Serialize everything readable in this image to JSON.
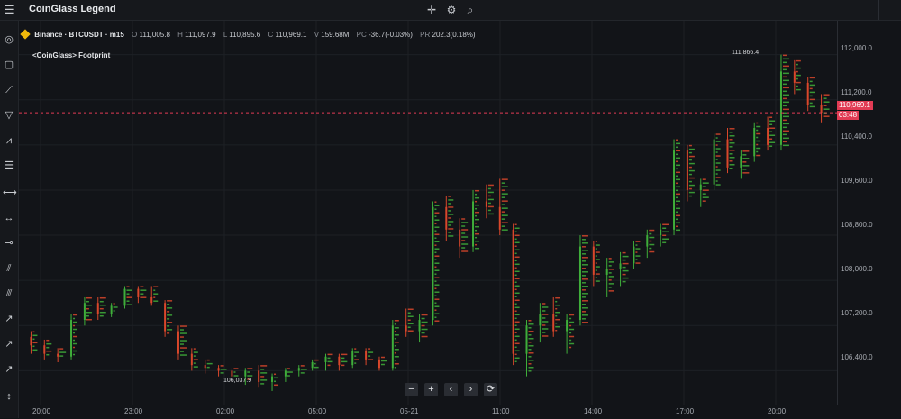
{
  "app": {
    "title": "CoinGlass Legend"
  },
  "icons": {
    "menu": "menu-icon",
    "crosshair": "crosshair-icon",
    "settings": "gear-icon",
    "search": "search-icon"
  },
  "toolbar": {
    "tools": [
      "cursor-icon",
      "rectangle-icon",
      "trendline-icon",
      "triangle-icon",
      "path-icon",
      "fib-icon",
      "horizontal-ray-icon",
      "horizontal-line-icon",
      "extended-line-icon",
      "parallel-channel-icon",
      "pitchfork-icon",
      "ray-icon",
      "arrow-icon",
      "info-line-icon",
      "vertical-line-icon"
    ]
  },
  "legend": {
    "symbol": "Binance · BTCUSDT · m15",
    "o_label": "O",
    "o_value": "111,005.8",
    "h_label": "H",
    "h_value": "111,097.9",
    "l_label": "L",
    "l_value": "110,895.6",
    "c_label": "C",
    "c_value": "110,969.1",
    "v_label": "V",
    "v_value": "159.68M",
    "pc_label": "PC",
    "pc_value": "-36.7(-0.03%)",
    "pr_label": "PR",
    "pr_value": "202.3(0.18%)"
  },
  "indicator": {
    "name": "<CoinGlass> Footprint"
  },
  "price_axis": {
    "labels": [
      "112,000.0",
      "111,200.0",
      "110,400.0",
      "109,600.0",
      "108,800.0",
      "108,000.0",
      "107,200.0",
      "106,400.0"
    ]
  },
  "current": {
    "price": "110,969.1",
    "countdown": "03:48"
  },
  "time_axis": {
    "labels": [
      "20:00",
      "23:00",
      "02:00",
      "05:00",
      "05-21",
      "11:00",
      "14:00",
      "17:00",
      "20:00"
    ]
  },
  "annotations": {
    "high": "111,866.4",
    "low": "106,037.9"
  },
  "zoom": {
    "out": "−",
    "in": "+",
    "left": "‹",
    "right": "›",
    "reset": "⟳"
  },
  "colors": {
    "up": "#3fae3a",
    "down": "#d9472b",
    "current": "#e23b54",
    "background": "#121418"
  },
  "chart_data": {
    "type": "candlestick",
    "title": "Binance · BTCUSDT · m15",
    "ylim": [
      105800,
      112600
    ],
    "candles": [
      [
        107000,
        107100,
        106700,
        106850
      ],
      [
        106850,
        106950,
        106600,
        106700
      ],
      [
        106700,
        106800,
        106550,
        106650
      ],
      [
        106650,
        107400,
        106600,
        107300
      ],
      [
        107300,
        107700,
        107200,
        107600
      ],
      [
        107600,
        107700,
        107300,
        107400
      ],
      [
        107400,
        107600,
        107350,
        107550
      ],
      [
        107550,
        107900,
        107500,
        107850
      ],
      [
        107850,
        107900,
        107600,
        107700
      ],
      [
        107700,
        107900,
        107550,
        107600
      ],
      [
        107600,
        107650,
        107000,
        107100
      ],
      [
        107100,
        107200,
        106600,
        106700
      ],
      [
        106700,
        106800,
        106400,
        106500
      ],
      [
        106500,
        106600,
        106350,
        106450
      ],
      [
        106450,
        106500,
        106300,
        106400
      ],
      [
        106400,
        106450,
        106200,
        106300
      ],
      [
        106300,
        106450,
        106150,
        106400
      ],
      [
        106400,
        106500,
        106100,
        106200
      ],
      [
        106200,
        106350,
        106040,
        106300
      ],
      [
        106300,
        106450,
        106200,
        106400
      ],
      [
        106400,
        106500,
        106300,
        106450
      ],
      [
        106450,
        106600,
        106400,
        106550
      ],
      [
        106550,
        106700,
        106400,
        106650
      ],
      [
        106650,
        106700,
        106400,
        106500
      ],
      [
        106500,
        106800,
        106450,
        106750
      ],
      [
        106750,
        106800,
        106500,
        106600
      ],
      [
        106600,
        106650,
        106400,
        106450
      ],
      [
        106450,
        107300,
        106400,
        107200
      ],
      [
        107200,
        107500,
        107000,
        107100
      ],
      [
        107100,
        107400,
        106900,
        107300
      ],
      [
        107300,
        109400,
        107200,
        109300
      ],
      [
        109300,
        109500,
        108700,
        108900
      ],
      [
        108900,
        109100,
        108400,
        108600
      ],
      [
        108600,
        109600,
        108500,
        109400
      ],
      [
        109400,
        109700,
        109100,
        109300
      ],
      [
        109300,
        109800,
        108800,
        108900
      ],
      [
        108900,
        109000,
        106500,
        106700
      ],
      [
        106700,
        107300,
        106300,
        107200
      ],
      [
        107200,
        107600,
        106900,
        107400
      ],
      [
        107400,
        107700,
        107000,
        107100
      ],
      [
        107100,
        107400,
        106700,
        107300
      ],
      [
        107300,
        108800,
        107200,
        108600
      ],
      [
        108600,
        108700,
        107900,
        108100
      ],
      [
        108100,
        108400,
        107700,
        108200
      ],
      [
        108200,
        108500,
        107900,
        108300
      ],
      [
        108300,
        108700,
        108200,
        108600
      ],
      [
        108600,
        108900,
        108400,
        108800
      ],
      [
        108800,
        109000,
        108600,
        108900
      ],
      [
        108900,
        110500,
        108800,
        110300
      ],
      [
        110300,
        110400,
        109400,
        109600
      ],
      [
        109600,
        109800,
        109300,
        109700
      ],
      [
        109700,
        110600,
        109600,
        110500
      ],
      [
        110500,
        110700,
        109900,
        110000
      ],
      [
        110000,
        110300,
        109800,
        110200
      ],
      [
        110200,
        110800,
        110100,
        110700
      ],
      [
        110700,
        110900,
        110300,
        110400
      ],
      [
        110400,
        112000,
        110300,
        111700
      ],
      [
        111700,
        111900,
        111300,
        111500
      ],
      [
        111500,
        111600,
        111000,
        111100
      ],
      [
        111100,
        111300,
        110800,
        110969
      ]
    ]
  }
}
